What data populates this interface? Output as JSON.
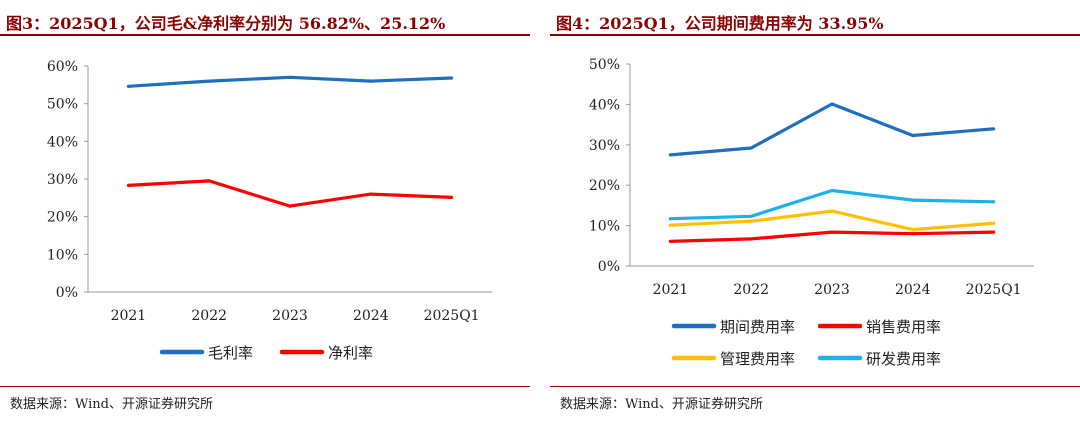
{
  "left": {
    "title": "图3：2025Q1，公司毛&净利率分别为 56.82%、25.12%",
    "source": "数据来源：Wind、开源证券研究所",
    "chart_data": {
      "type": "line",
      "categories": [
        "2021",
        "2022",
        "2023",
        "2024",
        "2025Q1"
      ],
      "ylim": [
        0,
        60
      ],
      "yticks": [
        "0%",
        "10%",
        "20%",
        "30%",
        "40%",
        "50%",
        "60%"
      ],
      "legend_position": "bottom",
      "series": [
        {
          "name": "毛利率",
          "color": "#1f6fc0",
          "values": [
            54.6,
            56.0,
            57.0,
            56.0,
            56.82
          ]
        },
        {
          "name": "净利率",
          "color": "#ff0000",
          "values": [
            28.3,
            29.5,
            22.8,
            26.0,
            25.12
          ]
        }
      ]
    }
  },
  "right": {
    "title": "图4：2025Q1，公司期间费用率为 33.95%",
    "source": "数据来源：Wind、开源证券研究所",
    "chart_data": {
      "type": "line",
      "categories": [
        "2021",
        "2022",
        "2023",
        "2024",
        "2025Q1"
      ],
      "ylim": [
        0,
        50
      ],
      "yticks": [
        "0%",
        "10%",
        "20%",
        "30%",
        "40%",
        "50%"
      ],
      "legend_position": "bottom",
      "series": [
        {
          "name": "期间费用率",
          "color": "#1f6fc0",
          "values": [
            27.5,
            29.2,
            40.1,
            32.3,
            33.95
          ]
        },
        {
          "name": "销售费用率",
          "color": "#ff0000",
          "values": [
            6.1,
            6.7,
            8.4,
            8.0,
            8.4
          ]
        },
        {
          "name": "管理费用率",
          "color": "#ffc000",
          "values": [
            10.1,
            11.1,
            13.6,
            9.0,
            10.6
          ]
        },
        {
          "name": "研发费用率",
          "color": "#1ab2e8",
          "values": [
            11.7,
            12.3,
            18.7,
            16.3,
            15.9
          ]
        }
      ]
    }
  }
}
